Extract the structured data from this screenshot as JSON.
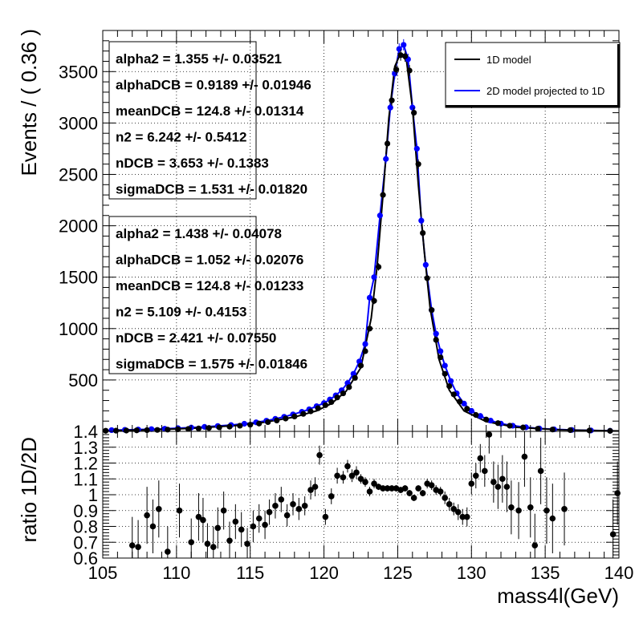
{
  "chart_data": [
    {
      "type": "scatter",
      "panel": "main",
      "xlabel": "",
      "ylabel": "Events / ( 0.36 )",
      "xlim": [
        105,
        140
      ],
      "ylim": [
        0,
        3900
      ],
      "y_ticks": [
        500,
        1000,
        1500,
        2000,
        2500,
        3000,
        3500
      ],
      "y_tick_labels": [
        "500",
        "1000",
        "1500",
        "2000",
        "2500",
        "3000",
        "3500"
      ],
      "grid": true,
      "legend_position": "top-right",
      "legend": [
        {
          "label": "1D model",
          "color": "#000000"
        },
        {
          "label": "2D model projected to 1D",
          "color": "#0000ff"
        }
      ],
      "series": [
        {
          "name": "1D model",
          "color": "#000000",
          "curve": [
            [
              105,
              6
            ],
            [
              108,
              14
            ],
            [
              111,
              29
            ],
            [
              114,
              57
            ],
            [
              116,
              90
            ],
            [
              118,
              140
            ],
            [
              119.5,
              200
            ],
            [
              120.5,
              270
            ],
            [
              121.5,
              390
            ],
            [
              122.5,
              620
            ],
            [
              123.2,
              1100
            ],
            [
              123.6,
              1600
            ],
            [
              124,
              2300
            ],
            [
              124.4,
              3050
            ],
            [
              124.8,
              3550
            ],
            [
              125.2,
              3680
            ],
            [
              125.6,
              3600
            ],
            [
              126,
              3150
            ],
            [
              126.4,
              2400
            ],
            [
              126.8,
              1750
            ],
            [
              127.2,
              1200
            ],
            [
              127.8,
              700
            ],
            [
              128.5,
              400
            ],
            [
              129.5,
              200
            ],
            [
              131,
              95
            ],
            [
              133,
              40
            ],
            [
              136,
              15
            ],
            [
              140,
              4
            ]
          ],
          "points": [
            [
              105.2,
              6
            ],
            [
              105.9,
              7
            ],
            [
              106.6,
              8
            ],
            [
              107.3,
              10
            ],
            [
              108,
              12
            ],
            [
              108.7,
              14
            ],
            [
              109.4,
              17
            ],
            [
              110.1,
              20
            ],
            [
              110.8,
              24
            ],
            [
              111.5,
              28
            ],
            [
              112.2,
              33
            ],
            [
              112.9,
              39
            ],
            [
              113.6,
              46
            ],
            [
              114.3,
              55
            ],
            [
              115,
              65
            ],
            [
              115.6,
              76
            ],
            [
              116.2,
              90
            ],
            [
              116.8,
              106
            ],
            [
              117.4,
              125
            ],
            [
              118,
              145
            ],
            [
              118.6,
              170
            ],
            [
              119.1,
              195
            ],
            [
              119.6,
              225
            ],
            [
              120.1,
              255
            ],
            [
              120.5,
              285
            ],
            [
              120.9,
              330
            ],
            [
              121.3,
              370
            ],
            [
              121.7,
              430
            ],
            [
              122.1,
              520
            ],
            [
              122.5,
              640
            ],
            [
              122.8,
              780
            ],
            [
              123.1,
              1000
            ],
            [
              123.4,
              1270
            ],
            [
              123.7,
              1600
            ],
            [
              124,
              2300
            ],
            [
              124.3,
              2800
            ],
            [
              124.6,
              3220
            ],
            [
              124.9,
              3520
            ],
            [
              125.2,
              3660
            ],
            [
              125.5,
              3650
            ],
            [
              125.8,
              3510
            ],
            [
              126.1,
              3100
            ],
            [
              126.4,
              2600
            ],
            [
              126.7,
              1930
            ],
            [
              127,
              1490
            ],
            [
              127.3,
              1180
            ],
            [
              127.6,
              890
            ],
            [
              127.9,
              720
            ],
            [
              128.2,
              560
            ],
            [
              128.5,
              440
            ],
            [
              128.8,
              360
            ],
            [
              129.2,
              290
            ],
            [
              129.7,
              220
            ],
            [
              130.3,
              160
            ],
            [
              131,
              115
            ],
            [
              131.8,
              80
            ],
            [
              132.6,
              55
            ],
            [
              133.5,
              38
            ],
            [
              134.5,
              26
            ],
            [
              135.5,
              18
            ],
            [
              136.7,
              12
            ],
            [
              138,
              8
            ],
            [
              139.4,
              5
            ]
          ]
        },
        {
          "name": "2D model projected to 1D",
          "color": "#0000ff",
          "points": [
            [
              105.6,
              12
            ],
            [
              106.5,
              15
            ],
            [
              107.4,
              18
            ],
            [
              108.3,
              22
            ],
            [
              109.2,
              26
            ],
            [
              110.1,
              31
            ],
            [
              111,
              37
            ],
            [
              111.9,
              44
            ],
            [
              112.8,
              52
            ],
            [
              113.7,
              62
            ],
            [
              114.6,
              74
            ],
            [
              115.4,
              88
            ],
            [
              116.1,
              104
            ],
            [
              116.7,
              122
            ],
            [
              117.3,
              142
            ],
            [
              117.9,
              165
            ],
            [
              118.5,
              190
            ],
            [
              119,
              215
            ],
            [
              119.5,
              245
            ],
            [
              120,
              275
            ],
            [
              120.4,
              310
            ],
            [
              120.8,
              350
            ],
            [
              121.2,
              400
            ],
            [
              121.6,
              470
            ],
            [
              122,
              560
            ],
            [
              122.4,
              680
            ],
            [
              122.8,
              850
            ],
            [
              123.1,
              1300
            ],
            [
              123.4,
              1500
            ],
            [
              123.8,
              2100
            ],
            [
              124.2,
              2650
            ],
            [
              124.5,
              3150
            ],
            [
              124.8,
              3480
            ],
            [
              125.1,
              3720
            ],
            [
              125.4,
              3760
            ],
            [
              125.7,
              3620
            ],
            [
              126,
              3150
            ],
            [
              126.3,
              2750
            ],
            [
              126.6,
              2050
            ],
            [
              126.9,
              1620
            ],
            [
              127.3,
              1180
            ],
            [
              127.6,
              950
            ],
            [
              127.9,
              780
            ],
            [
              128.2,
              640
            ],
            [
              128.6,
              490
            ],
            [
              129,
              370
            ],
            [
              129.5,
              270
            ],
            [
              130,
              200
            ],
            [
              130.6,
              150
            ],
            [
              131.3,
              105
            ],
            [
              132,
              75
            ],
            [
              132.8,
              55
            ],
            [
              133.7,
              40
            ],
            [
              134.6,
              28
            ],
            [
              135.6,
              20
            ],
            [
              136.8,
              14
            ],
            [
              138.1,
              9
            ],
            [
              139.4,
              6
            ]
          ]
        }
      ],
      "annotations": [
        [
          "alpha2 =  1.355 +/- 0.03521",
          "alphaDCB =  0.9189 +/- 0.01946",
          "meanDCB =  124.8 +/- 0.01314",
          "n2 =  6.242 +/- 0.5412",
          "nDCB =  3.653 +/- 0.1383",
          "sigmaDCB =  1.531 +/- 0.01820"
        ],
        [
          "alpha2 =  1.438 +/- 0.04078",
          "alphaDCB =  1.052 +/- 0.02076",
          "meanDCB =  124.8 +/- 0.01233",
          "n2 =  5.109 +/- 0.4153",
          "nDCB =  2.421 +/- 0.07550",
          "sigmaDCB =  1.575 +/- 0.01846"
        ]
      ]
    },
    {
      "type": "scatter",
      "panel": "ratio",
      "xlabel": "mass4l(GeV)",
      "ylabel": "ratio 1D/2D",
      "xlim": [
        105,
        140
      ],
      "ylim": [
        0.6,
        1.4
      ],
      "x_ticks": [
        105,
        110,
        115,
        120,
        125,
        130,
        135,
        140
      ],
      "x_tick_labels": [
        "105",
        "110",
        "115",
        "120",
        "125",
        "130",
        "135",
        "140"
      ],
      "y_ticks": [
        0.6,
        0.7,
        0.8,
        0.9,
        1,
        1.1,
        1.2,
        1.3,
        1.4
      ],
      "y_tick_labels": [
        "0.6",
        "0.7",
        "0.8",
        "0.9",
        "1",
        "1.1",
        "1.2",
        "1.3",
        "1.4"
      ],
      "grid": true,
      "points": [
        {
          "x": 107.0,
          "y": 0.68,
          "err": 0.18
        },
        {
          "x": 107.4,
          "y": 0.67,
          "err": 0.17
        },
        {
          "x": 108.0,
          "y": 0.87,
          "err": 0.18
        },
        {
          "x": 108.4,
          "y": 0.8,
          "err": 0.17
        },
        {
          "x": 108.8,
          "y": 0.91,
          "err": 0.18
        },
        {
          "x": 109.4,
          "y": 0.64,
          "err": 0.16
        },
        {
          "x": 110.2,
          "y": 0.9,
          "err": 0.17
        },
        {
          "x": 111.0,
          "y": 0.7,
          "err": 0.15
        },
        {
          "x": 111.5,
          "y": 0.86,
          "err": 0.15
        },
        {
          "x": 111.8,
          "y": 0.84,
          "err": 0.14
        },
        {
          "x": 112.1,
          "y": 0.69,
          "err": 0.13
        },
        {
          "x": 112.5,
          "y": 0.67,
          "err": 0.13
        },
        {
          "x": 112.8,
          "y": 0.79,
          "err": 0.13
        },
        {
          "x": 113.2,
          "y": 0.9,
          "err": 0.12
        },
        {
          "x": 113.6,
          "y": 0.71,
          "err": 0.12
        },
        {
          "x": 114.0,
          "y": 0.83,
          "err": 0.11
        },
        {
          "x": 114.4,
          "y": 0.78,
          "err": 0.11
        },
        {
          "x": 114.8,
          "y": 0.69,
          "err": 0.1
        },
        {
          "x": 115.2,
          "y": 0.8,
          "err": 0.1
        },
        {
          "x": 115.6,
          "y": 0.85,
          "err": 0.09
        },
        {
          "x": 116.0,
          "y": 0.81,
          "err": 0.09
        },
        {
          "x": 116.3,
          "y": 0.89,
          "err": 0.08
        },
        {
          "x": 116.7,
          "y": 0.93,
          "err": 0.08
        },
        {
          "x": 117.1,
          "y": 0.97,
          "err": 0.08
        },
        {
          "x": 117.5,
          "y": 0.87,
          "err": 0.07
        },
        {
          "x": 117.9,
          "y": 0.94,
          "err": 0.07
        },
        {
          "x": 118.3,
          "y": 0.91,
          "err": 0.07
        },
        {
          "x": 118.7,
          "y": 0.93,
          "err": 0.06
        },
        {
          "x": 119.1,
          "y": 1.03,
          "err": 0.06
        },
        {
          "x": 119.4,
          "y": 1.05,
          "err": 0.06
        },
        {
          "x": 119.7,
          "y": 1.25,
          "err": 0.06
        },
        {
          "x": 120.1,
          "y": 0.86,
          "err": 0.05
        },
        {
          "x": 120.5,
          "y": 0.99,
          "err": 0.05
        },
        {
          "x": 120.9,
          "y": 1.12,
          "err": 0.05
        },
        {
          "x": 121.3,
          "y": 1.11,
          "err": 0.04
        },
        {
          "x": 121.6,
          "y": 1.18,
          "err": 0.04
        },
        {
          "x": 121.9,
          "y": 1.12,
          "err": 0.04
        },
        {
          "x": 122.2,
          "y": 1.14,
          "err": 0.04
        },
        {
          "x": 122.5,
          "y": 1.1,
          "err": 0.03
        },
        {
          "x": 122.8,
          "y": 1.08,
          "err": 0.03
        },
        {
          "x": 123.1,
          "y": 1.02,
          "err": 0.03
        },
        {
          "x": 123.4,
          "y": 1.07,
          "err": 0.03
        },
        {
          "x": 123.7,
          "y": 1.05,
          "err": 0.02
        },
        {
          "x": 124.0,
          "y": 1.04,
          "err": 0.02
        },
        {
          "x": 124.3,
          "y": 1.04,
          "err": 0.02
        },
        {
          "x": 124.6,
          "y": 1.04,
          "err": 0.02
        },
        {
          "x": 124.9,
          "y": 1.04,
          "err": 0.02
        },
        {
          "x": 125.2,
          "y": 1.03,
          "err": 0.02
        },
        {
          "x": 125.5,
          "y": 1.04,
          "err": 0.02
        },
        {
          "x": 125.8,
          "y": 1.01,
          "err": 0.02
        },
        {
          "x": 126.1,
          "y": 0.98,
          "err": 0.02
        },
        {
          "x": 126.4,
          "y": 1.04,
          "err": 0.02
        },
        {
          "x": 126.7,
          "y": 1.01,
          "err": 0.02
        },
        {
          "x": 127.0,
          "y": 1.07,
          "err": 0.03
        },
        {
          "x": 127.3,
          "y": 1.06,
          "err": 0.03
        },
        {
          "x": 127.6,
          "y": 1.03,
          "err": 0.03
        },
        {
          "x": 127.9,
          "y": 1.02,
          "err": 0.03
        },
        {
          "x": 128.2,
          "y": 0.98,
          "err": 0.04
        },
        {
          "x": 128.5,
          "y": 0.94,
          "err": 0.04
        },
        {
          "x": 128.8,
          "y": 0.91,
          "err": 0.04
        },
        {
          "x": 129.1,
          "y": 0.89,
          "err": 0.05
        },
        {
          "x": 129.4,
          "y": 0.86,
          "err": 0.05
        },
        {
          "x": 129.7,
          "y": 0.86,
          "err": 0.06
        },
        {
          "x": 130.0,
          "y": 1.07,
          "err": 0.07
        },
        {
          "x": 130.3,
          "y": 1.12,
          "err": 0.08
        },
        {
          "x": 130.6,
          "y": 1.23,
          "err": 0.09
        },
        {
          "x": 130.9,
          "y": 1.15,
          "err": 0.1
        },
        {
          "x": 131.2,
          "y": 1.38,
          "err": 0.12
        },
        {
          "x": 131.5,
          "y": 1.08,
          "err": 0.13
        },
        {
          "x": 131.8,
          "y": 1.05,
          "err": 0.14
        },
        {
          "x": 132.1,
          "y": 1.1,
          "err": 0.15
        },
        {
          "x": 132.4,
          "y": 1.05,
          "err": 0.16
        },
        {
          "x": 132.7,
          "y": 0.92,
          "err": 0.17
        },
        {
          "x": 133.2,
          "y": 0.9,
          "err": 0.18
        },
        {
          "x": 133.6,
          "y": 1.24,
          "err": 0.19
        },
        {
          "x": 134.0,
          "y": 0.92,
          "err": 0.19
        },
        {
          "x": 134.3,
          "y": 0.68,
          "err": 0.2
        },
        {
          "x": 134.7,
          "y": 1.15,
          "err": 0.21
        },
        {
          "x": 135.1,
          "y": 0.9,
          "err": 0.21
        },
        {
          "x": 135.5,
          "y": 0.85,
          "err": 0.22
        },
        {
          "x": 136.3,
          "y": 0.91,
          "err": 0.23
        },
        {
          "x": 139.6,
          "y": 0.75,
          "err": 0.22
        },
        {
          "x": 139.9,
          "y": 1.01,
          "err": 0.2
        }
      ]
    }
  ]
}
